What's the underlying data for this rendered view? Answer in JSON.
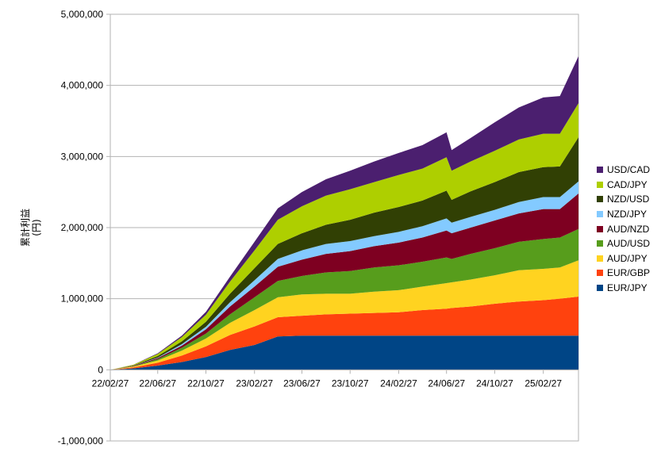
{
  "chart_data": {
    "type": "area",
    "stacked": true,
    "ylabel": "累計利益\n(円)",
    "ylim": [
      -1000000,
      5000000
    ],
    "y_ticks": [
      -1000000,
      0,
      1000000,
      2000000,
      3000000,
      4000000,
      5000000
    ],
    "y_tick_labels": [
      "-1,000,000",
      "0",
      "1,000,000",
      "2,000,000",
      "3,000,000",
      "4,000,000",
      "5,000,000"
    ],
    "x_ticks": [
      "22/02/27",
      "22/06/27",
      "22/10/27",
      "23/02/27",
      "23/06/27",
      "23/10/27",
      "24/02/27",
      "24/06/27",
      "24/10/27",
      "25/02/27"
    ],
    "x_range": [
      "22/02/27",
      "25/05/27"
    ],
    "x": [
      "22/02/27",
      "22/04/27",
      "22/06/27",
      "22/08/27",
      "22/10/27",
      "22/12/27",
      "23/02/27",
      "23/04/27",
      "23/06/27",
      "23/08/27",
      "23/10/27",
      "23/12/27",
      "24/02/27",
      "24/04/27",
      "24/06/27",
      "24/07/10",
      "24/08/27",
      "24/10/27",
      "24/12/27",
      "25/02/27",
      "25/04/10",
      "25/05/27"
    ],
    "grid": true,
    "legend_position": "right",
    "series": [
      {
        "name": "EUR/JPY",
        "color": "#004586",
        "values": [
          0,
          20000,
          60000,
          110000,
          180000,
          280000,
          350000,
          470000,
          480000,
          480000,
          480000,
          480000,
          480000,
          480000,
          480000,
          480000,
          480000,
          480000,
          480000,
          480000,
          480000,
          480000
        ]
      },
      {
        "name": "EUR/GBP",
        "color": "#ff420e",
        "values": [
          0,
          15000,
          40000,
          90000,
          150000,
          210000,
          260000,
          270000,
          280000,
          300000,
          310000,
          320000,
          330000,
          360000,
          380000,
          390000,
          410000,
          450000,
          480000,
          500000,
          520000,
          550000
        ]
      },
      {
        "name": "AUD/JPY",
        "color": "#ffd320",
        "values": [
          0,
          10000,
          30000,
          70000,
          110000,
          170000,
          230000,
          280000,
          300000,
          290000,
          280000,
          300000,
          310000,
          330000,
          360000,
          360000,
          380000,
          400000,
          440000,
          440000,
          440000,
          510000
        ]
      },
      {
        "name": "AUD/USD",
        "color": "#579d1c",
        "values": [
          0,
          5000,
          20000,
          40000,
          70000,
          120000,
          180000,
          230000,
          260000,
          300000,
          320000,
          340000,
          350000,
          350000,
          360000,
          330000,
          360000,
          380000,
          400000,
          420000,
          420000,
          440000
        ]
      },
      {
        "name": "AUD/NZD",
        "color": "#7e0021",
        "values": [
          0,
          5000,
          15000,
          30000,
          60000,
          110000,
          150000,
          200000,
          230000,
          260000,
          280000,
          300000,
          320000,
          340000,
          380000,
          360000,
          370000,
          390000,
          400000,
          420000,
          400000,
          500000
        ]
      },
      {
        "name": "NZD/JPY",
        "color": "#83caff",
        "values": [
          0,
          2000,
          8000,
          20000,
          35000,
          60000,
          90000,
          110000,
          130000,
          140000,
          140000,
          140000,
          150000,
          160000,
          170000,
          150000,
          150000,
          150000,
          160000,
          170000,
          170000,
          170000
        ]
      },
      {
        "name": "NZD/USD",
        "color": "#314004",
        "values": [
          0,
          5000,
          20000,
          40000,
          70000,
          120000,
          170000,
          210000,
          240000,
          270000,
          300000,
          330000,
          350000,
          360000,
          390000,
          320000,
          360000,
          390000,
          420000,
          420000,
          430000,
          620000
        ]
      },
      {
        "name": "CAD/JPY",
        "color": "#aecf00",
        "values": [
          0,
          10000,
          30000,
          60000,
          100000,
          170000,
          250000,
          340000,
          380000,
          410000,
          430000,
          430000,
          450000,
          450000,
          470000,
          410000,
          420000,
          440000,
          460000,
          470000,
          460000,
          480000
        ]
      },
      {
        "name": "USD/CAD",
        "color": "#4b1f6f",
        "values": [
          0,
          2000,
          10000,
          20000,
          40000,
          70000,
          120000,
          160000,
          200000,
          230000,
          260000,
          290000,
          310000,
          330000,
          350000,
          290000,
          330000,
          400000,
          450000,
          510000,
          530000,
          660000
        ]
      }
    ]
  }
}
